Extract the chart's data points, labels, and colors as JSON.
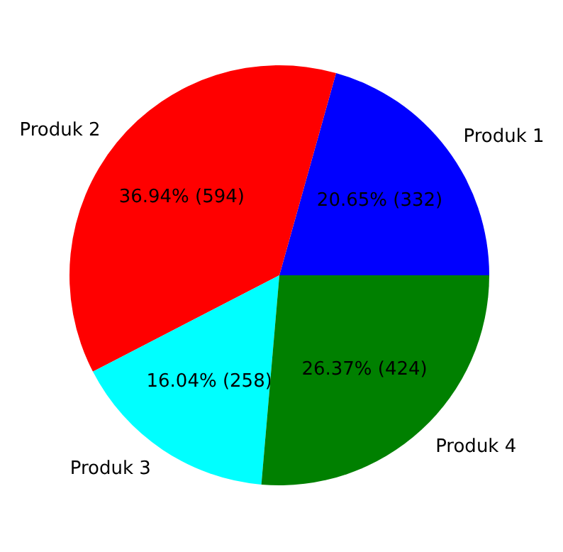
{
  "chart_data": {
    "type": "pie",
    "categories": [
      "Produk 1",
      "Produk 2",
      "Produk 3",
      "Produk 4"
    ],
    "values": [
      332,
      594,
      258,
      424
    ],
    "colors": [
      "#0000ff",
      "#ff0000",
      "#00ffff",
      "#008000"
    ],
    "value_labels": [
      "20.65% (332)",
      "36.94% (594)",
      "16.04% (258)",
      "26.37% (424)"
    ]
  }
}
